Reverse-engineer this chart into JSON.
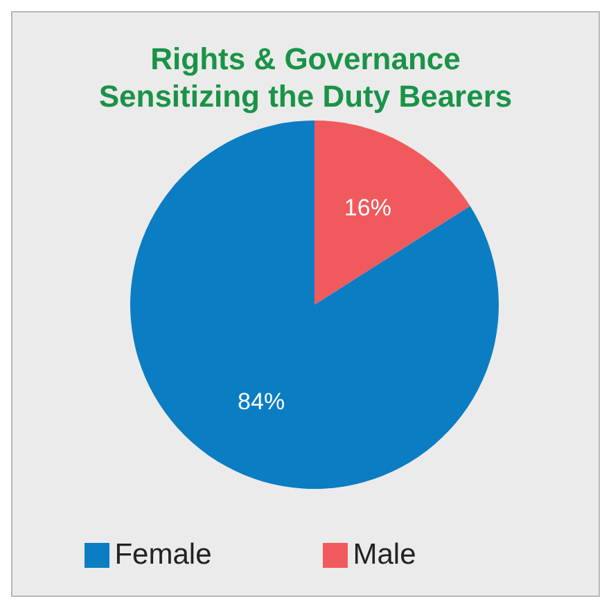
{
  "chart_data": {
    "type": "pie",
    "title": "Rights & Governance Sensitizing the Duty Bearers",
    "categories": [
      "Male",
      "Female"
    ],
    "values": [
      16,
      84
    ],
    "colors": [
      "#f05a5c",
      "#0b7dc2"
    ],
    "value_labels": [
      "16%",
      "84%"
    ],
    "legend": "bottom"
  }
}
